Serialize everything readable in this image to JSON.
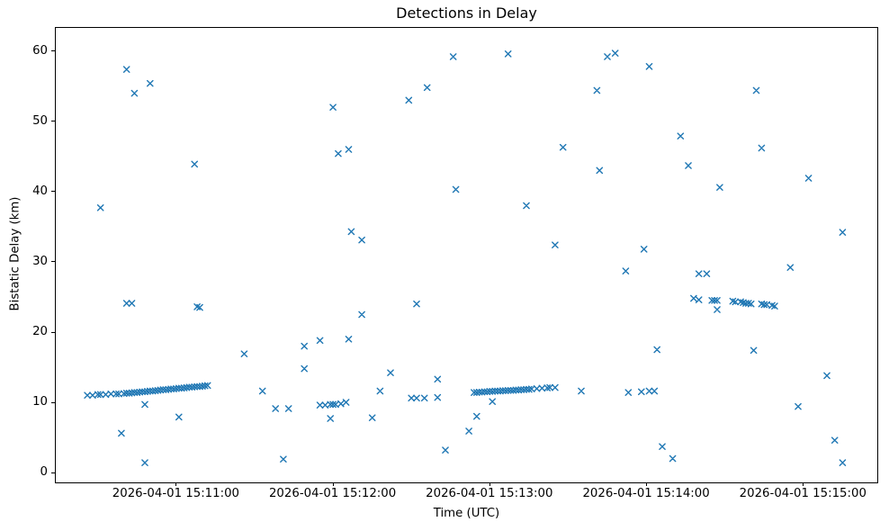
{
  "chart_data": {
    "type": "scatter",
    "title": "Detections in Delay",
    "xlabel": "Time (UTC)",
    "ylabel": "Bistatic Delay (km)",
    "marker": "x",
    "marker_color": "#1f77b4",
    "grid": false,
    "legend": "none",
    "x_unit": "seconds after 2026-04-01 15:10:00 UTC",
    "xlim": [
      13.9,
      328.3
    ],
    "ylim": [
      -1.4,
      63.3
    ],
    "x_ticks": [
      {
        "value": 60,
        "label": "2026-04-01 15:11:00"
      },
      {
        "value": 120,
        "label": "2026-04-01 15:12:00"
      },
      {
        "value": 180,
        "label": "2026-04-01 15:13:00"
      },
      {
        "value": 240,
        "label": "2026-04-01 15:14:00"
      },
      {
        "value": 300,
        "label": "2026-04-01 15:15:00"
      }
    ],
    "y_ticks": [
      0,
      10,
      20,
      30,
      40,
      50,
      60
    ],
    "points_format": [
      "t_seconds_after_2026-04-01T15:10:00Z",
      "bistatic_delay_km"
    ],
    "points": [
      [
        26,
        11.0
      ],
      [
        28,
        11.0
      ],
      [
        30,
        11.1
      ],
      [
        31,
        11.1
      ],
      [
        31,
        37.7
      ],
      [
        33,
        11.1
      ],
      [
        35,
        11.2
      ],
      [
        37,
        11.2
      ],
      [
        38,
        11.2
      ],
      [
        39,
        5.6
      ],
      [
        40,
        11.25
      ],
      [
        41,
        11.3
      ],
      [
        41,
        57.4
      ],
      [
        41,
        24.1
      ],
      [
        42,
        11.3
      ],
      [
        43,
        11.35
      ],
      [
        43,
        24.1
      ],
      [
        44,
        11.4
      ],
      [
        44,
        54.0
      ],
      [
        45,
        11.4
      ],
      [
        46,
        11.45
      ],
      [
        47,
        11.5
      ],
      [
        48,
        11.5
      ],
      [
        48,
        9.7
      ],
      [
        48,
        1.4
      ],
      [
        49,
        11.55
      ],
      [
        50,
        11.6
      ],
      [
        50,
        55.4
      ],
      [
        51,
        11.6
      ],
      [
        52,
        11.65
      ],
      [
        53,
        11.7
      ],
      [
        54,
        11.75
      ],
      [
        55,
        11.8
      ],
      [
        56,
        11.8
      ],
      [
        57,
        11.85
      ],
      [
        58,
        11.9
      ],
      [
        59,
        11.9
      ],
      [
        60,
        11.95
      ],
      [
        61,
        12.0
      ],
      [
        61,
        7.9
      ],
      [
        62,
        12.0
      ],
      [
        63,
        12.05
      ],
      [
        64,
        12.1
      ],
      [
        65,
        12.15
      ],
      [
        66,
        12.15
      ],
      [
        67,
        12.2
      ],
      [
        67,
        43.9
      ],
      [
        68,
        12.25
      ],
      [
        68,
        23.6
      ],
      [
        69,
        12.25
      ],
      [
        69,
        23.5
      ],
      [
        70,
        12.3
      ],
      [
        71,
        12.35
      ],
      [
        72,
        12.4
      ],
      [
        86,
        16.9
      ],
      [
        93,
        11.6
      ],
      [
        98,
        9.1
      ],
      [
        101,
        1.9
      ],
      [
        103,
        9.1
      ],
      [
        109,
        18.0
      ],
      [
        109,
        14.8
      ],
      [
        115,
        18.8
      ],
      [
        115,
        9.6
      ],
      [
        117,
        9.6
      ],
      [
        119,
        9.7
      ],
      [
        119,
        7.7
      ],
      [
        120,
        52.0
      ],
      [
        120,
        9.7
      ],
      [
        121,
        9.7
      ],
      [
        122,
        45.4
      ],
      [
        123,
        9.8
      ],
      [
        125,
        10.0
      ],
      [
        126,
        46.0
      ],
      [
        126,
        19.0
      ],
      [
        127,
        34.3
      ],
      [
        131,
        33.1
      ],
      [
        131,
        22.5
      ],
      [
        135,
        7.8
      ],
      [
        138,
        11.6
      ],
      [
        142,
        14.2
      ],
      [
        149,
        53.0
      ],
      [
        150,
        10.6
      ],
      [
        152,
        24.0
      ],
      [
        152,
        10.6
      ],
      [
        155,
        10.6
      ],
      [
        156,
        54.8
      ],
      [
        160,
        13.3
      ],
      [
        160,
        10.7
      ],
      [
        163,
        3.2
      ],
      [
        166,
        59.2
      ],
      [
        167,
        40.3
      ],
      [
        172,
        5.9
      ],
      [
        174,
        11.4
      ],
      [
        175,
        11.4
      ],
      [
        175,
        8.0
      ],
      [
        176,
        11.45
      ],
      [
        177,
        11.45
      ],
      [
        178,
        11.5
      ],
      [
        179,
        11.5
      ],
      [
        180,
        11.55
      ],
      [
        181,
        11.55
      ],
      [
        181,
        10.1
      ],
      [
        182,
        11.6
      ],
      [
        183,
        11.6
      ],
      [
        184,
        11.6
      ],
      [
        185,
        11.65
      ],
      [
        186,
        11.65
      ],
      [
        187,
        11.7
      ],
      [
        187,
        59.6
      ],
      [
        188,
        11.7
      ],
      [
        189,
        11.7
      ],
      [
        190,
        11.75
      ],
      [
        191,
        11.75
      ],
      [
        192,
        11.8
      ],
      [
        193,
        11.8
      ],
      [
        194,
        11.85
      ],
      [
        194,
        38.0
      ],
      [
        195,
        11.85
      ],
      [
        196,
        11.9
      ],
      [
        198,
        11.95
      ],
      [
        200,
        12.0
      ],
      [
        202,
        12.05
      ],
      [
        203,
        12.1
      ],
      [
        205,
        12.1
      ],
      [
        205,
        32.4
      ],
      [
        208,
        46.3
      ],
      [
        215,
        11.6
      ],
      [
        221,
        54.4
      ],
      [
        222,
        43.0
      ],
      [
        225,
        59.2
      ],
      [
        228,
        59.7
      ],
      [
        232,
        28.7
      ],
      [
        233,
        11.4
      ],
      [
        238,
        11.5
      ],
      [
        239,
        31.8
      ],
      [
        241,
        57.8
      ],
      [
        241,
        11.6
      ],
      [
        243,
        11.6
      ],
      [
        244,
        17.5
      ],
      [
        246,
        3.7
      ],
      [
        250,
        2.0
      ],
      [
        253,
        47.9
      ],
      [
        256,
        43.7
      ],
      [
        258,
        24.8
      ],
      [
        260,
        28.3
      ],
      [
        260,
        24.6
      ],
      [
        263,
        28.3
      ],
      [
        265,
        24.5
      ],
      [
        266,
        24.5
      ],
      [
        267,
        24.5
      ],
      [
        267,
        23.2
      ],
      [
        268,
        40.6
      ],
      [
        273,
        24.4
      ],
      [
        274,
        24.3
      ],
      [
        276,
        24.3
      ],
      [
        277,
        24.2
      ],
      [
        278,
        24.1
      ],
      [
        279,
        24.1
      ],
      [
        280,
        24.0
      ],
      [
        281,
        17.4
      ],
      [
        282,
        54.4
      ],
      [
        284,
        46.2
      ],
      [
        284,
        24.0
      ],
      [
        285,
        23.9
      ],
      [
        286,
        23.9
      ],
      [
        288,
        23.8
      ],
      [
        289,
        23.7
      ],
      [
        295,
        29.2
      ],
      [
        298,
        9.4
      ],
      [
        302,
        41.9
      ],
      [
        309,
        13.8
      ],
      [
        312,
        4.6
      ],
      [
        315,
        34.2
      ],
      [
        315,
        1.4
      ]
    ]
  }
}
